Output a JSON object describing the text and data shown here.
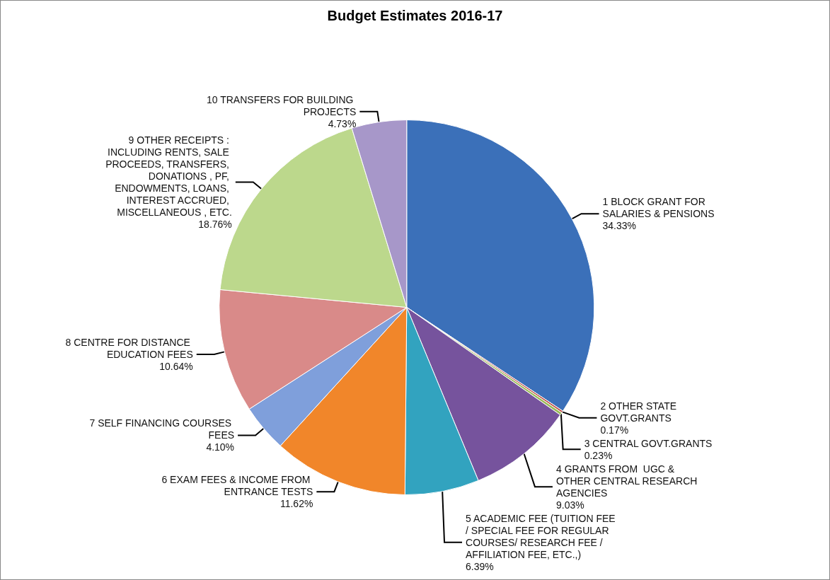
{
  "chart_data": {
    "type": "pie",
    "title": "Budget Estimates 2016-17",
    "categories": [
      "1 BLOCK GRANT FOR SALARIES & PENSIONS",
      "2 OTHER STATE GOVT.GRANTS",
      "3 CENTRAL GOVT.GRANTS",
      "4 GRANTS FROM  UGC & OTHER CENTRAL RESEARCH AGENCIES",
      "5 ACADEMIC FEE (TUITION FEE/ SPECIAL FEE FOR REGULAR COURSES/ RESEARCH FEE / AFFILIATION FEE, ETC.,)",
      "6 EXAM FEES & INCOME FROM ENTRANCE TESTS",
      "7 SELF FINANCING COURSES FEES",
      "8 CENTRE FOR DISTANCE EDUCATION FEES",
      "9 OTHER RECEIPTS : INCLUDING RENTS, SALE PROCEEDS, TRANSFERS, DONATIONS , PF, ENDOWMENTS, LOANS, INTEREST ACCRUED, MISCELLANEOUS , ETC.",
      "10 TRANSFERS FOR BUILDING PROJECTS"
    ],
    "values": [
      34.33,
      0.17,
      0.23,
      9.03,
      6.39,
      11.62,
      4.1,
      10.64,
      18.76,
      4.73
    ],
    "value_labels": [
      "34.33%",
      "0.17%",
      "0.23%",
      "9.03%",
      "6.39%",
      "11.62%",
      "4.10%",
      "10.64%",
      "18.76%",
      "4.73%"
    ],
    "colors": [
      "#3b70b9",
      "#c0504d",
      "#9bbb59",
      "#76539d",
      "#32a3bf",
      "#f1862a",
      "#7f9fdb",
      "#d98a89",
      "#bcd88c",
      "#a797c9"
    ],
    "legend": false
  }
}
